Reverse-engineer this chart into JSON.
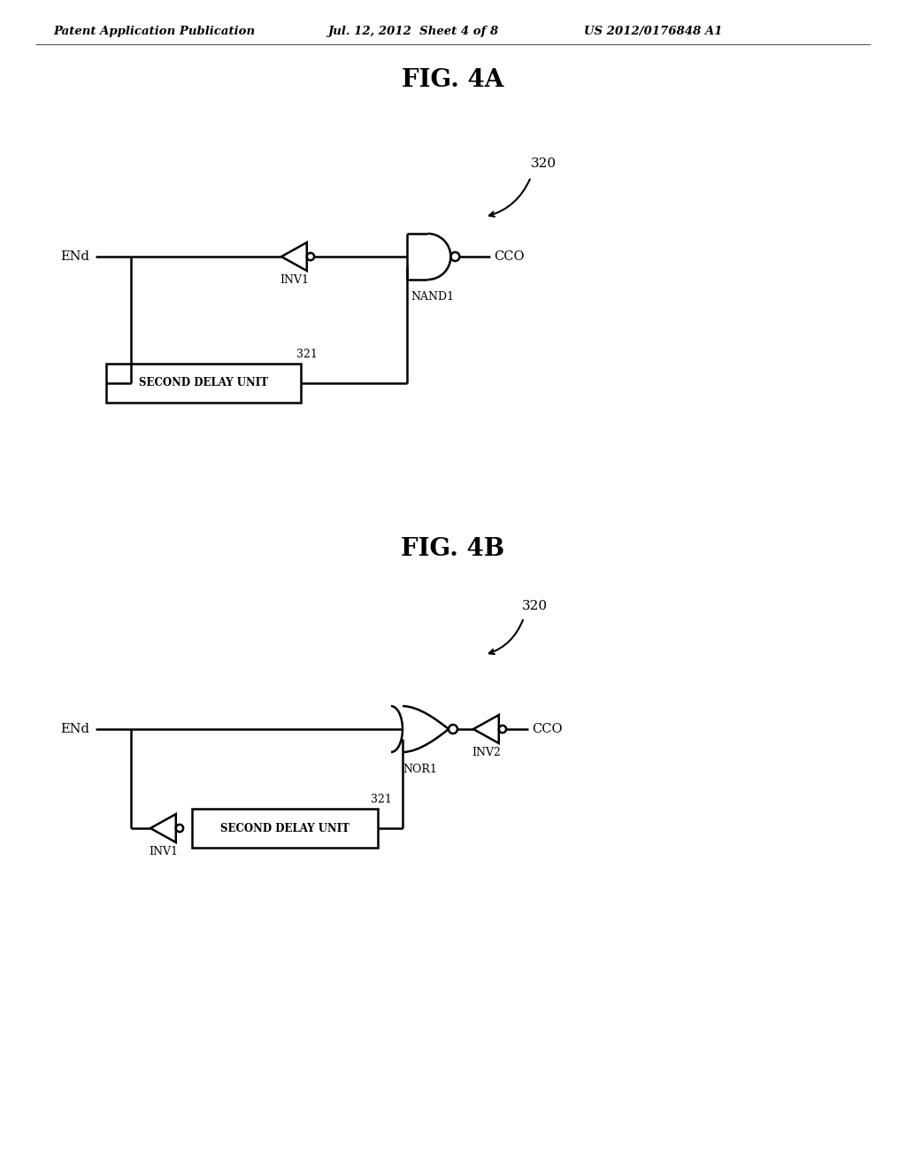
{
  "bg_color": "#ffffff",
  "line_color": "#000000",
  "header_left": "Patent Application Publication",
  "header_center": "Jul. 12, 2012  Sheet 4 of 8",
  "header_right": "US 2012/0176848 A1",
  "fig4a_title": "FIG. 4A",
  "fig4b_title": "FIG. 4B",
  "label_320_4a": "320",
  "label_321_4a": "321",
  "label_320_4b": "320",
  "label_321_4b": "321",
  "label_ENd_4a": "ENd",
  "label_CCO_4a": "CCO",
  "label_INV1_4a": "INV1",
  "label_NAND1_4a": "NAND1",
  "label_SDU_4a": "SECOND DELAY UNIT",
  "label_ENd_4b": "ENd",
  "label_CCO_4b": "CCO",
  "label_INV1_4b": "INV1",
  "label_INV2_4b": "INV2",
  "label_NOR1_4b": "NOR1",
  "label_SDU_4b": "SECOND DELAY UNIT"
}
